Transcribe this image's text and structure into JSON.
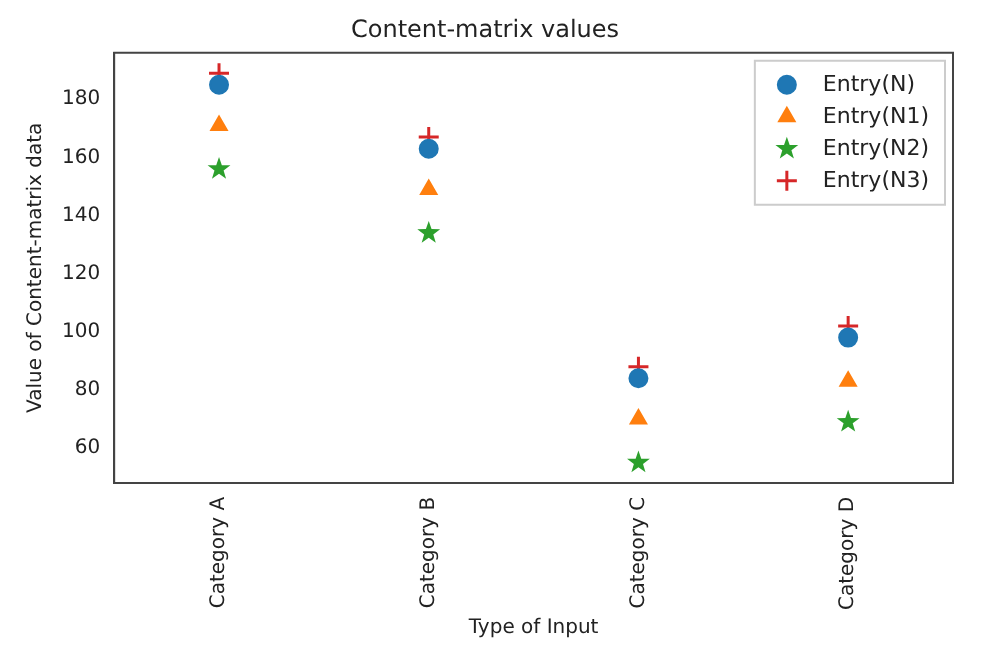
{
  "chart_data": {
    "type": "scatter",
    "title": "Content-matrix values",
    "xlabel": "Type of Input",
    "ylabel": "Value of Content-matrix data",
    "categories": [
      "Category A",
      "Category B",
      "Category C",
      "Category D"
    ],
    "series": [
      {
        "name": "Entry(N)",
        "color": "#1f77b4",
        "marker": "circle",
        "values": [
          185,
          163,
          84,
          98
        ]
      },
      {
        "name": "Entry(N1)",
        "color": "#ff7f0e",
        "marker": "triangle",
        "values": [
          171,
          149,
          70,
          83
        ]
      },
      {
        "name": "Entry(N2)",
        "color": "#2ca02c",
        "marker": "star",
        "values": [
          156,
          134,
          55,
          69
        ]
      },
      {
        "name": "Entry(N3)",
        "color": "#d62728",
        "marker": "cross",
        "values": [
          189,
          167,
          88,
          102
        ]
      }
    ],
    "ylim": [
      48,
      196
    ],
    "yticks": [
      60,
      80,
      100,
      120,
      140,
      160,
      180
    ],
    "grid": false,
    "legend": "top right"
  }
}
